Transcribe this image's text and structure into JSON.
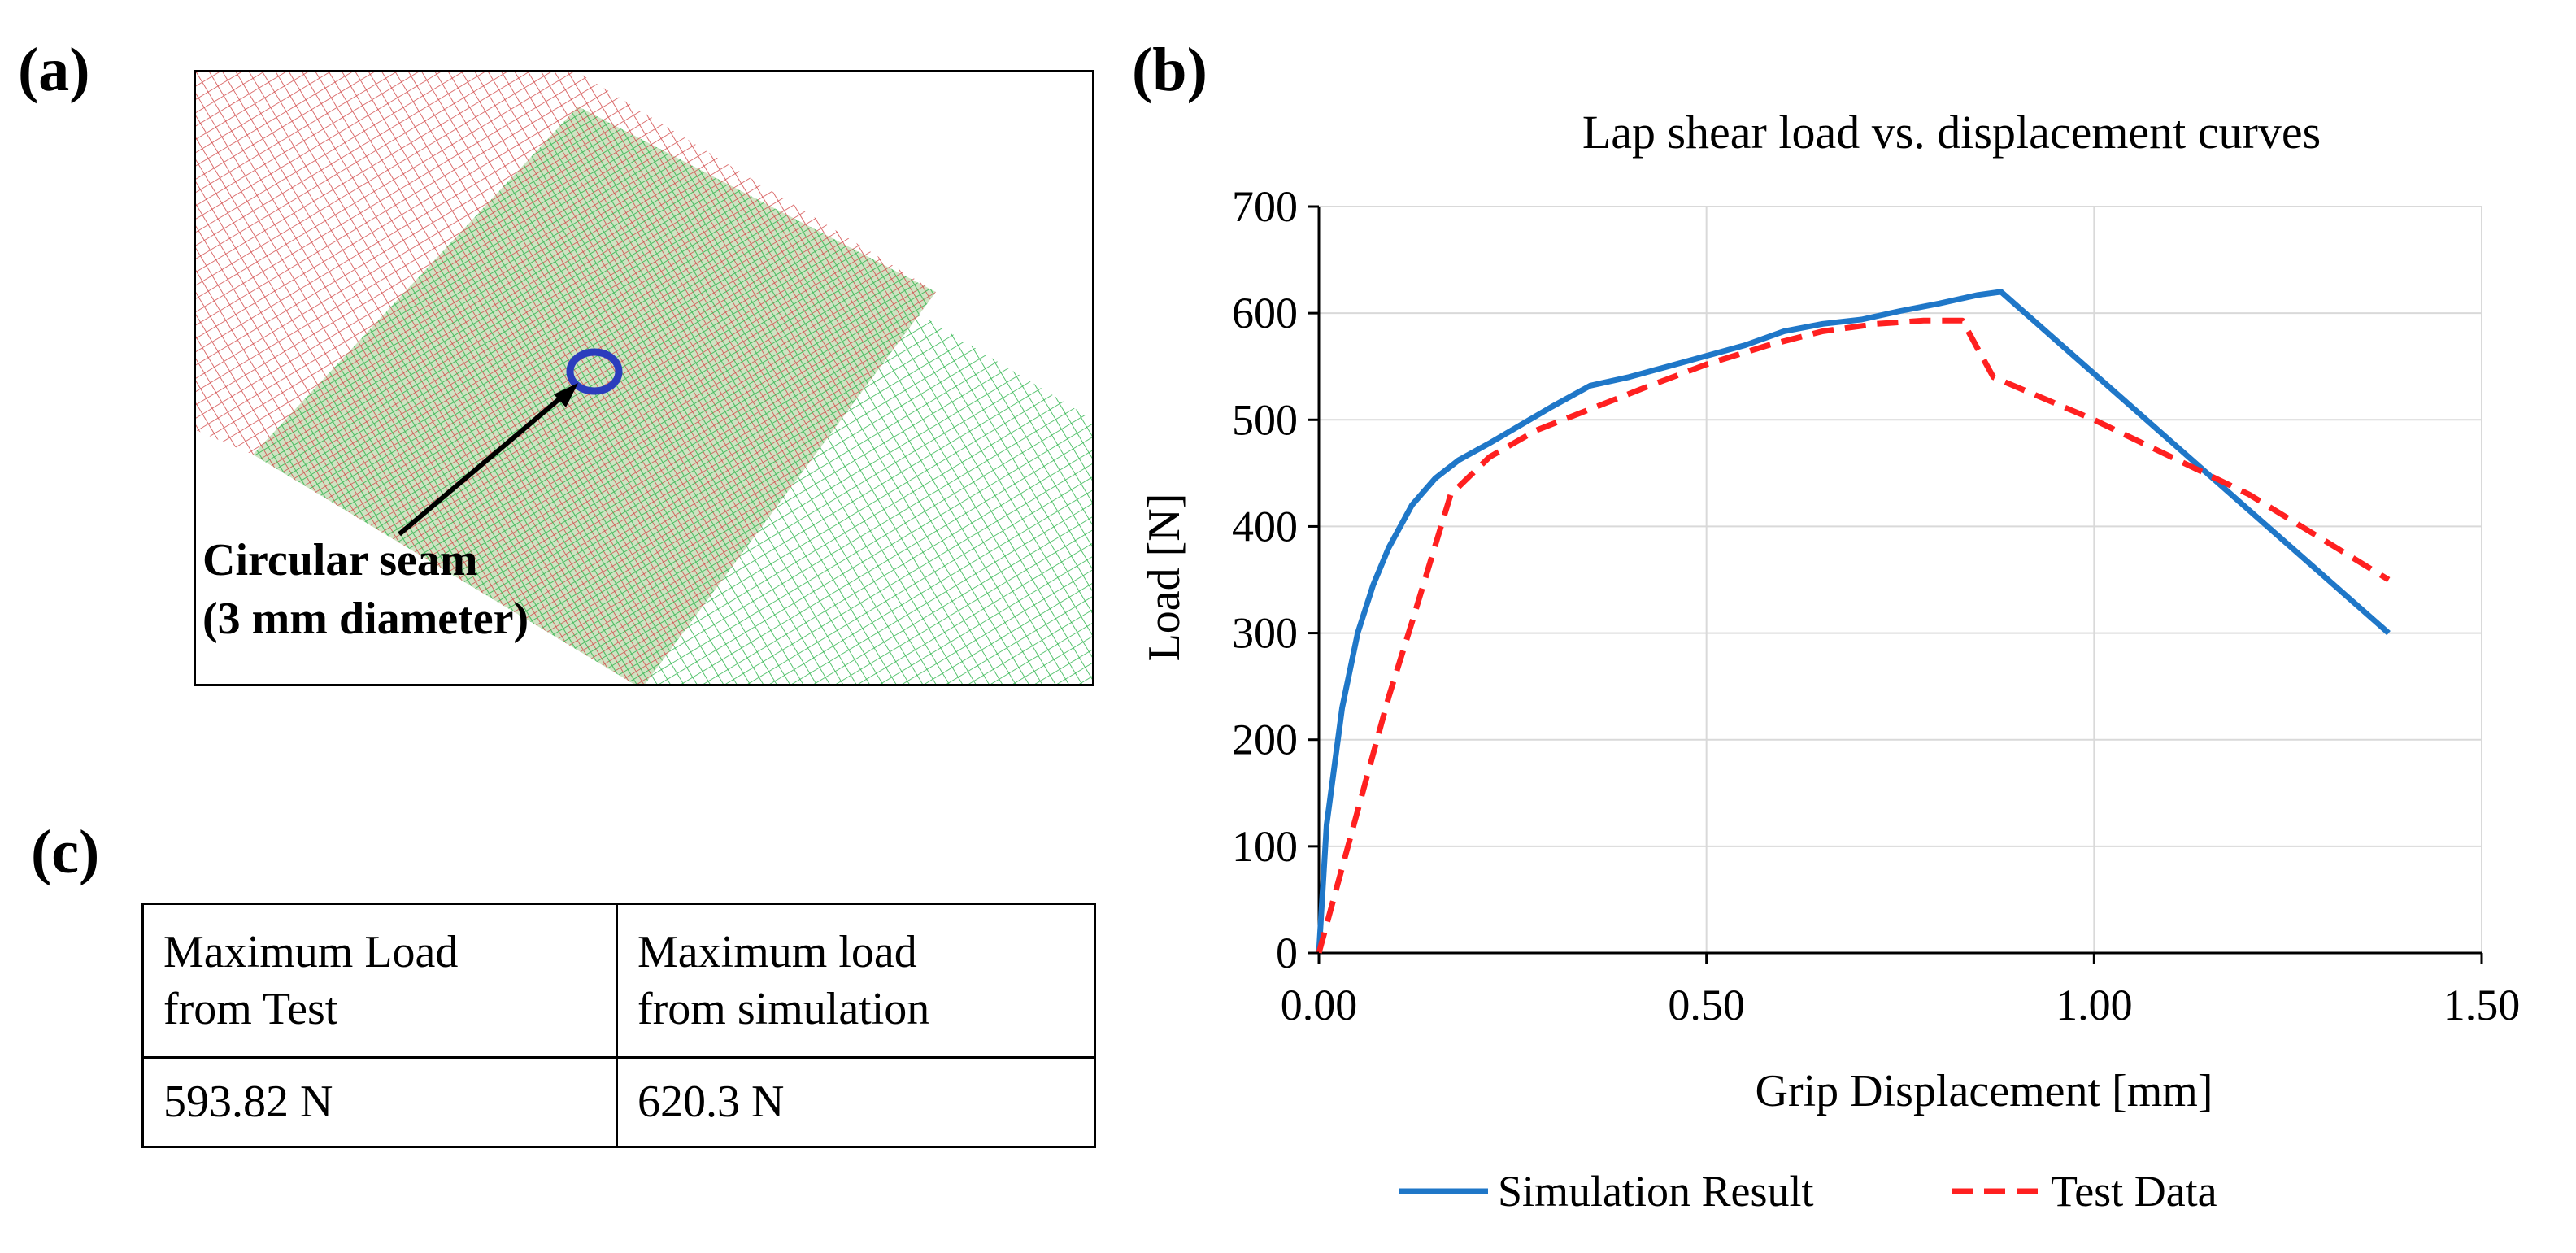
{
  "panels": {
    "a": {
      "label": "(a)",
      "annotation_line1": "Circular seam",
      "annotation_line2": "(3 mm diameter)"
    },
    "b": {
      "label": "(b)"
    },
    "c": {
      "label": "(c)"
    }
  },
  "colors": {
    "mesh_red": "#d24a4a",
    "mesh_green": "#2db44b",
    "seam_blue": "#2b3dbd",
    "sim_line": "#1f77c8",
    "test_line": "#ff2020",
    "grid": "#d9d9d9"
  },
  "table": {
    "header": [
      "Maximum Load\nfrom Test",
      "Maximum load\nfrom simulation"
    ],
    "header_lines": [
      [
        "Maximum Load",
        "from Test"
      ],
      [
        "Maximum load",
        "from simulation"
      ]
    ],
    "values": [
      "593.82 N",
      "620.3 N"
    ]
  },
  "chart_data": {
    "type": "line",
    "title": "Lap shear load vs. displacement curves",
    "xlabel": "Grip Displacement [mm]",
    "ylabel": "Load [N]",
    "xlim": [
      0,
      1.5
    ],
    "ylim": [
      0,
      700
    ],
    "xticks": [
      0,
      0.5,
      1.0,
      1.5
    ],
    "xtick_labels": [
      "0.00",
      "0.50",
      "1.00",
      "1.50"
    ],
    "yticks": [
      0,
      100,
      200,
      300,
      400,
      500,
      600,
      700
    ],
    "ytick_labels": [
      "0",
      "100",
      "200",
      "300",
      "400",
      "500",
      "600",
      "700"
    ],
    "grid": true,
    "legend_position": "bottom",
    "series": [
      {
        "name": "Simulation Result",
        "style": "solid",
        "x": [
          0.0,
          0.01,
          0.03,
          0.05,
          0.07,
          0.09,
          0.12,
          0.15,
          0.18,
          0.22,
          0.26,
          0.3,
          0.35,
          0.4,
          0.45,
          0.5,
          0.55,
          0.6,
          0.65,
          0.7,
          0.75,
          0.8,
          0.85,
          0.88,
          1.38
        ],
        "y": [
          0,
          120,
          230,
          300,
          345,
          380,
          420,
          445,
          462,
          478,
          495,
          512,
          532,
          540,
          550,
          560,
          570,
          583,
          590,
          594,
          602,
          609,
          617,
          620,
          300
        ]
      },
      {
        "name": "Test Data",
        "style": "dashed",
        "x": [
          0.0,
          0.03,
          0.06,
          0.09,
          0.12,
          0.17,
          0.22,
          0.28,
          0.35,
          0.42,
          0.5,
          0.58,
          0.65,
          0.72,
          0.78,
          0.83,
          0.87,
          1.0,
          1.2,
          1.38
        ],
        "y": [
          0,
          80,
          160,
          240,
          310,
          430,
          465,
          490,
          510,
          530,
          552,
          570,
          583,
          590,
          593,
          593,
          540,
          500,
          430,
          350
        ]
      }
    ]
  }
}
